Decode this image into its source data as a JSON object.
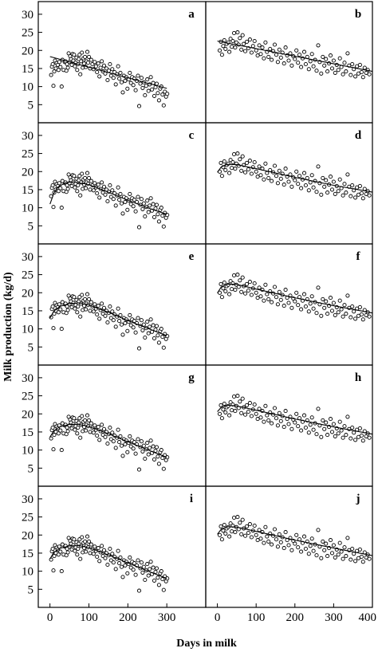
{
  "chart_data": {
    "type": "scatter",
    "ylabel": "Milk production (kg/d)",
    "xlabel": "Days in milk",
    "left_xticks": [
      "0",
      "100",
      "200",
      "300"
    ],
    "right_xticks": [
      "0",
      "100",
      "200",
      "300",
      "400"
    ],
    "yticks": [
      "5",
      "10",
      "15",
      "20",
      "25",
      "30"
    ],
    "left_xlim": [
      -30,
      400
    ],
    "right_xlim": [
      -30,
      400
    ],
    "ylim": [
      0,
      33.5
    ],
    "left_points": [
      [
        3,
        13.2
      ],
      [
        5,
        15.5
      ],
      [
        7,
        16.2
      ],
      [
        9,
        10.2
      ],
      [
        11,
        14.2
      ],
      [
        13,
        17.2
      ],
      [
        15,
        15.0
      ],
      [
        17,
        16.5
      ],
      [
        20,
        16.0
      ],
      [
        22,
        14.6
      ],
      [
        24,
        16.8
      ],
      [
        27,
        15.4
      ],
      [
        30,
        10.0
      ],
      [
        32,
        17.4
      ],
      [
        35,
        14.6
      ],
      [
        38,
        16.8
      ],
      [
        40,
        17.0
      ],
      [
        42,
        14.4
      ],
      [
        44,
        16.2
      ],
      [
        46,
        15.2
      ],
      [
        48,
        19.2
      ],
      [
        50,
        16.8
      ],
      [
        52,
        18.4
      ],
      [
        54,
        17.6
      ],
      [
        56,
        16.0
      ],
      [
        58,
        19.0
      ],
      [
        60,
        17.2
      ],
      [
        62,
        18.8
      ],
      [
        64,
        15.6
      ],
      [
        66,
        16.6
      ],
      [
        68,
        18.0
      ],
      [
        70,
        14.6
      ],
      [
        72,
        16.2
      ],
      [
        74,
        17.6
      ],
      [
        76,
        18.8
      ],
      [
        78,
        13.4
      ],
      [
        80,
        17.0
      ],
      [
        82,
        19.4
      ],
      [
        84,
        15.2
      ],
      [
        86,
        17.8
      ],
      [
        88,
        16.4
      ],
      [
        90,
        18.2
      ],
      [
        92,
        15.4
      ],
      [
        94,
        17.0
      ],
      [
        96,
        19.6
      ],
      [
        98,
        16.6
      ],
      [
        100,
        18.2
      ],
      [
        103,
        15.0
      ],
      [
        106,
        17.4
      ],
      [
        109,
        16.2
      ],
      [
        112,
        14.8
      ],
      [
        115,
        16.8
      ],
      [
        118,
        15.6
      ],
      [
        121,
        14.0
      ],
      [
        124,
        16.4
      ],
      [
        127,
        12.8
      ],
      [
        130,
        15.2
      ],
      [
        133,
        17.0
      ],
      [
        136,
        14.2
      ],
      [
        139,
        15.8
      ],
      [
        142,
        13.6
      ],
      [
        145,
        15.0
      ],
      [
        148,
        11.8
      ],
      [
        151,
        14.4
      ],
      [
        154,
        16.2
      ],
      [
        157,
        13.0
      ],
      [
        160,
        14.8
      ],
      [
        163,
        12.4
      ],
      [
        166,
        14.0
      ],
      [
        169,
        10.6
      ],
      [
        172,
        13.4
      ],
      [
        175,
        15.6
      ],
      [
        178,
        12.2
      ],
      [
        181,
        13.8
      ],
      [
        184,
        11.2
      ],
      [
        187,
        8.4
      ],
      [
        190,
        13.0
      ],
      [
        193,
        11.6
      ],
      [
        196,
        12.6
      ],
      [
        199,
        9.4
      ],
      [
        202,
        12.0
      ],
      [
        205,
        13.8
      ],
      [
        208,
        11.0
      ],
      [
        211,
        12.6
      ],
      [
        214,
        10.4
      ],
      [
        217,
        12.2
      ],
      [
        220,
        9.0
      ],
      [
        223,
        11.6
      ],
      [
        226,
        13.0
      ],
      [
        229,
        4.6
      ],
      [
        232,
        10.8
      ],
      [
        235,
        12.4
      ],
      [
        238,
        9.6
      ],
      [
        241,
        11.2
      ],
      [
        244,
        7.6
      ],
      [
        247,
        10.2
      ],
      [
        250,
        12.0
      ],
      [
        253,
        8.8
      ],
      [
        256,
        10.6
      ],
      [
        259,
        12.6
      ],
      [
        262,
        9.2
      ],
      [
        265,
        11.0
      ],
      [
        268,
        7.4
      ],
      [
        271,
        9.8
      ],
      [
        274,
        10.8
      ],
      [
        277,
        8.2
      ],
      [
        280,
        6.2
      ],
      [
        283,
        9.4
      ],
      [
        286,
        10.0
      ],
      [
        289,
        7.8
      ],
      [
        292,
        4.8
      ],
      [
        295,
        8.6
      ],
      [
        298,
        7.2
      ],
      [
        301,
        8.0
      ]
    ],
    "right_points": [
      [
        6,
        20.0
      ],
      [
        9,
        22.4
      ],
      [
        12,
        18.8
      ],
      [
        15,
        21.2
      ],
      [
        18,
        22.8
      ],
      [
        21,
        20.4
      ],
      [
        24,
        21.8
      ],
      [
        28,
        22.2
      ],
      [
        31,
        19.6
      ],
      [
        34,
        23.2
      ],
      [
        37,
        21.0
      ],
      [
        40,
        22.6
      ],
      [
        43,
        24.8
      ],
      [
        46,
        20.8
      ],
      [
        49,
        22.2
      ],
      [
        52,
        25.0
      ],
      [
        55,
        21.6
      ],
      [
        58,
        23.4
      ],
      [
        62,
        20.2
      ],
      [
        65,
        24.2
      ],
      [
        68,
        21.8
      ],
      [
        72,
        19.8
      ],
      [
        76,
        22.4
      ],
      [
        80,
        20.6
      ],
      [
        84,
        23.0
      ],
      [
        88,
        19.4
      ],
      [
        92,
        21.2
      ],
      [
        96,
        22.6
      ],
      [
        100,
        20.0
      ],
      [
        104,
        18.6
      ],
      [
        108,
        21.4
      ],
      [
        112,
        19.0
      ],
      [
        116,
        20.8
      ],
      [
        120,
        17.8
      ],
      [
        124,
        22.2
      ],
      [
        128,
        19.6
      ],
      [
        132,
        18.2
      ],
      [
        136,
        20.4
      ],
      [
        140,
        17.4
      ],
      [
        144,
        19.8
      ],
      [
        148,
        21.6
      ],
      [
        152,
        18.8
      ],
      [
        156,
        16.8
      ],
      [
        160,
        20.2
      ],
      [
        164,
        18.0
      ],
      [
        168,
        19.4
      ],
      [
        172,
        16.4
      ],
      [
        176,
        20.8
      ],
      [
        180,
        18.6
      ],
      [
        184,
        17.2
      ],
      [
        188,
        19.2
      ],
      [
        192,
        15.8
      ],
      [
        196,
        18.4
      ],
      [
        200,
        17.6
      ],
      [
        204,
        20.0
      ],
      [
        208,
        16.6
      ],
      [
        212,
        18.8
      ],
      [
        216,
        15.4
      ],
      [
        220,
        17.8
      ],
      [
        224,
        19.6
      ],
      [
        228,
        16.2
      ],
      [
        232,
        18.2
      ],
      [
        236,
        14.8
      ],
      [
        240,
        17.0
      ],
      [
        244,
        19.0
      ],
      [
        248,
        15.6
      ],
      [
        252,
        17.4
      ],
      [
        256,
        14.4
      ],
      [
        260,
        21.4
      ],
      [
        264,
        16.8
      ],
      [
        268,
        13.6
      ],
      [
        272,
        18.2
      ],
      [
        276,
        15.8
      ],
      [
        280,
        17.6
      ],
      [
        284,
        14.2
      ],
      [
        288,
        16.4
      ],
      [
        292,
        18.6
      ],
      [
        296,
        15.0
      ],
      [
        300,
        17.2
      ],
      [
        304,
        13.8
      ],
      [
        308,
        16.0
      ],
      [
        312,
        14.6
      ],
      [
        316,
        17.8
      ],
      [
        320,
        15.4
      ],
      [
        324,
        13.4
      ],
      [
        328,
        16.6
      ],
      [
        332,
        14.2
      ],
      [
        336,
        19.2
      ],
      [
        340,
        15.8
      ],
      [
        344,
        13.2
      ],
      [
        348,
        16.2
      ],
      [
        352,
        14.8
      ],
      [
        356,
        12.8
      ],
      [
        360,
        15.6
      ],
      [
        364,
        13.6
      ],
      [
        368,
        16.0
      ],
      [
        372,
        14.0
      ],
      [
        376,
        12.6
      ],
      [
        380,
        15.2
      ],
      [
        384,
        13.8
      ],
      [
        388,
        14.6
      ],
      [
        392,
        13.4
      ]
    ],
    "panels": [
      {
        "letter": "a",
        "side": "left",
        "curve": [
          [
            0,
            18.3
          ],
          [
            300,
            9.5
          ]
        ]
      },
      {
        "letter": "b",
        "side": "right",
        "curve": [
          [
            0,
            22.6
          ],
          [
            400,
            14.2
          ]
        ]
      },
      {
        "letter": "c",
        "side": "left",
        "curve": [
          [
            0,
            11.0
          ],
          [
            10,
            14.0
          ],
          [
            20,
            15.7
          ],
          [
            40,
            16.9
          ],
          [
            60,
            17.2
          ],
          [
            100,
            16.4
          ],
          [
            150,
            14.3
          ],
          [
            200,
            12.1
          ],
          [
            250,
            10.0
          ],
          [
            300,
            8.2
          ]
        ]
      },
      {
        "letter": "d",
        "side": "right",
        "curve": [
          [
            0,
            19.8
          ],
          [
            10,
            21.3
          ],
          [
            25,
            22.0
          ],
          [
            50,
            21.9
          ],
          [
            100,
            20.8
          ],
          [
            200,
            18.4
          ],
          [
            300,
            16.2
          ],
          [
            400,
            14.3
          ]
        ]
      },
      {
        "letter": "e",
        "side": "left",
        "curve": [
          [
            0,
            13.0
          ],
          [
            10,
            14.9
          ],
          [
            25,
            16.2
          ],
          [
            50,
            17.0
          ],
          [
            75,
            17.2
          ],
          [
            100,
            16.6
          ],
          [
            150,
            14.6
          ],
          [
            200,
            12.3
          ],
          [
            250,
            10.2
          ],
          [
            300,
            8.1
          ]
        ]
      },
      {
        "letter": "f",
        "side": "right",
        "curve": [
          [
            0,
            19.9
          ],
          [
            10,
            21.6
          ],
          [
            25,
            22.4
          ],
          [
            50,
            22.3
          ],
          [
            100,
            21.0
          ],
          [
            200,
            18.6
          ],
          [
            300,
            16.4
          ],
          [
            400,
            14.4
          ]
        ]
      },
      {
        "letter": "g",
        "side": "left",
        "curve": [
          [
            0,
            13.6
          ],
          [
            10,
            15.3
          ],
          [
            25,
            16.4
          ],
          [
            50,
            17.1
          ],
          [
            75,
            17.1
          ],
          [
            100,
            16.5
          ],
          [
            150,
            14.5
          ],
          [
            200,
            12.3
          ],
          [
            250,
            10.1
          ],
          [
            300,
            8.0
          ]
        ]
      },
      {
        "letter": "h",
        "side": "right",
        "curve": [
          [
            0,
            20.6
          ],
          [
            10,
            21.8
          ],
          [
            25,
            22.4
          ],
          [
            50,
            22.2
          ],
          [
            100,
            21.0
          ],
          [
            200,
            18.6
          ],
          [
            300,
            16.4
          ],
          [
            400,
            14.4
          ]
        ]
      },
      {
        "letter": "i",
        "side": "left",
        "curve": [
          [
            0,
            13.4
          ],
          [
            10,
            15.2
          ],
          [
            25,
            16.3
          ],
          [
            50,
            17.0
          ],
          [
            75,
            17.1
          ],
          [
            100,
            16.5
          ],
          [
            150,
            14.5
          ],
          [
            200,
            12.3
          ],
          [
            250,
            10.1
          ],
          [
            300,
            8.0
          ]
        ]
      },
      {
        "letter": "j",
        "side": "right",
        "curve": [
          [
            0,
            20.2
          ],
          [
            10,
            21.6
          ],
          [
            25,
            22.3
          ],
          [
            50,
            22.2
          ],
          [
            100,
            21.0
          ],
          [
            200,
            18.6
          ],
          [
            300,
            16.4
          ],
          [
            400,
            14.3
          ]
        ]
      }
    ]
  }
}
